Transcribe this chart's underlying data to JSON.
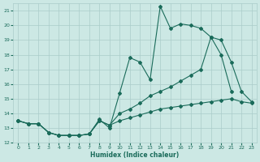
{
  "xlabel": "Humidex (Indice chaleur)",
  "bg_color": "#cce8e4",
  "grid_color": "#aaccca",
  "line_color": "#1a6b5a",
  "ylim": [
    12,
    21.5
  ],
  "xlim": [
    -0.5,
    23.5
  ],
  "yticks": [
    12,
    13,
    14,
    15,
    16,
    17,
    18,
    19,
    20,
    21
  ],
  "xticks": [
    0,
    1,
    2,
    3,
    4,
    5,
    6,
    7,
    8,
    9,
    10,
    11,
    12,
    13,
    14,
    15,
    16,
    17,
    18,
    19,
    20,
    21,
    22,
    23
  ],
  "s1_x": [
    0,
    1,
    2,
    3,
    4,
    5,
    6,
    7,
    8,
    9,
    10,
    11,
    12,
    13,
    14,
    15,
    16,
    17,
    18,
    19,
    20,
    21
  ],
  "s1_y": [
    13.5,
    13.3,
    13.3,
    12.7,
    12.5,
    12.5,
    12.5,
    12.6,
    13.6,
    13.0,
    15.4,
    17.8,
    17.5,
    16.3,
    21.3,
    19.8,
    20.1,
    20.0,
    19.8,
    19.2,
    18.0,
    15.5
  ],
  "s2_x": [
    0,
    1,
    2,
    3,
    4,
    5,
    6,
    7,
    8,
    9,
    10,
    11,
    12,
    13,
    14,
    15,
    16,
    17,
    18,
    19,
    20,
    21,
    22,
    23
  ],
  "s2_y": [
    13.5,
    13.3,
    13.3,
    12.7,
    12.5,
    12.5,
    12.5,
    12.6,
    13.5,
    13.2,
    14.0,
    14.3,
    14.7,
    15.2,
    15.5,
    15.8,
    16.2,
    16.6,
    17.0,
    19.2,
    19.0,
    17.5,
    15.5,
    14.8
  ],
  "s3_x": [
    0,
    1,
    2,
    3,
    4,
    5,
    6,
    7,
    8,
    9,
    10,
    11,
    12,
    13,
    14,
    15,
    16,
    17,
    18,
    19,
    20,
    21,
    22,
    23
  ],
  "s3_y": [
    13.5,
    13.3,
    13.3,
    12.7,
    12.5,
    12.5,
    12.5,
    12.6,
    13.5,
    13.2,
    13.5,
    13.7,
    13.9,
    14.1,
    14.3,
    14.4,
    14.5,
    14.6,
    14.7,
    14.8,
    14.9,
    15.0,
    14.8,
    14.7
  ]
}
